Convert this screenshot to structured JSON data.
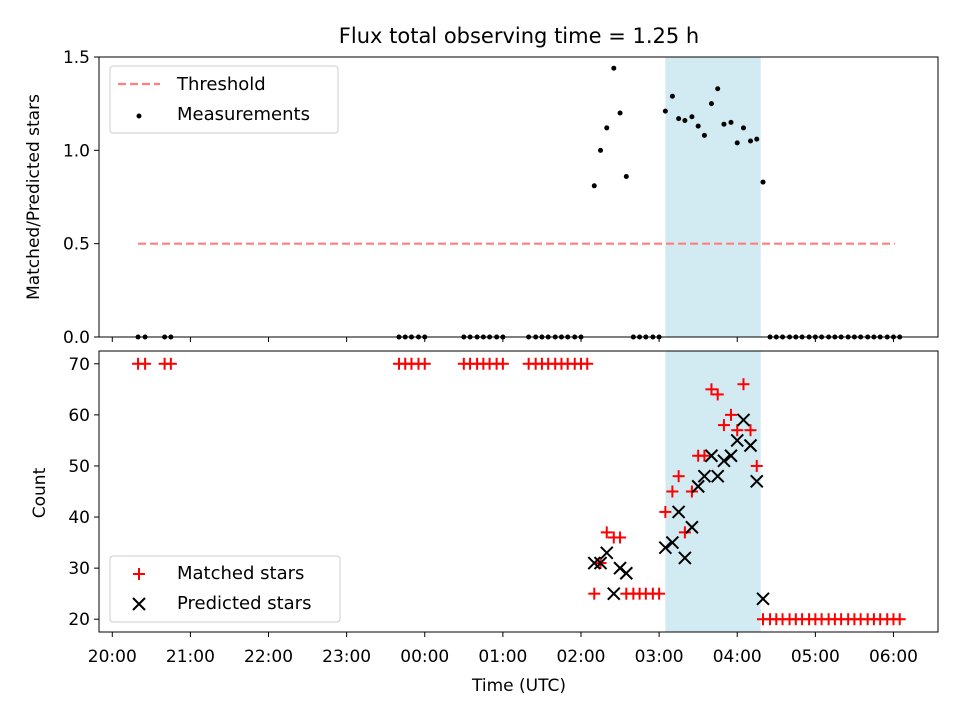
{
  "colors": {
    "threshold": "#ff7f7f",
    "measurement": "#000000",
    "matched": "#ff0000",
    "predicted": "#000000",
    "span": "#add8e6"
  },
  "chart_data": [
    {
      "type": "scatter",
      "title": "Flux total observing time = 1.25 h",
      "xlabel": "",
      "ylabel": "Matched/Predicted stars",
      "xlim": [
        -0.17,
        10.57
      ],
      "ylim": [
        0,
        1.5
      ],
      "yticks": [
        0.0,
        0.5,
        1.0,
        1.5
      ],
      "ytick_labels": [
        "0.0",
        "0.5",
        "1.0",
        "1.5"
      ],
      "shaded_span": [
        7.08,
        8.3
      ],
      "legend": {
        "placement": "upper-left",
        "threshold_label": "Threshold",
        "measurements_label": "Measurements"
      },
      "threshold": {
        "name": "Threshold",
        "y": 0.5,
        "x": [
          0.33,
          10.02
        ]
      },
      "series": [
        {
          "name": "Measurements",
          "points": [
            [
              0.33,
              0
            ],
            [
              0.42,
              0
            ],
            [
              0.67,
              0
            ],
            [
              0.75,
              0
            ],
            [
              3.67,
              0
            ],
            [
              3.75,
              0
            ],
            [
              3.83,
              0
            ],
            [
              3.92,
              0
            ],
            [
              4.0,
              0
            ],
            [
              4.5,
              0
            ],
            [
              4.58,
              0
            ],
            [
              4.67,
              0
            ],
            [
              4.75,
              0
            ],
            [
              4.83,
              0
            ],
            [
              4.92,
              0
            ],
            [
              5.0,
              0
            ],
            [
              5.33,
              0
            ],
            [
              5.42,
              0
            ],
            [
              5.5,
              0
            ],
            [
              5.58,
              0
            ],
            [
              5.67,
              0
            ],
            [
              5.75,
              0
            ],
            [
              5.83,
              0
            ],
            [
              5.92,
              0
            ],
            [
              6.0,
              0
            ],
            [
              6.17,
              0.81
            ],
            [
              6.25,
              1.0
            ],
            [
              6.33,
              1.12
            ],
            [
              6.42,
              1.44
            ],
            [
              6.5,
              1.2
            ],
            [
              6.58,
              0.86
            ],
            [
              6.67,
              0
            ],
            [
              6.75,
              0
            ],
            [
              6.83,
              0
            ],
            [
              6.92,
              0
            ],
            [
              7.0,
              0
            ],
            [
              7.08,
              1.21
            ],
            [
              7.17,
              1.29
            ],
            [
              7.25,
              1.17
            ],
            [
              7.33,
              1.16
            ],
            [
              7.42,
              1.18
            ],
            [
              7.5,
              1.13
            ],
            [
              7.58,
              1.08
            ],
            [
              7.67,
              1.25
            ],
            [
              7.75,
              1.33
            ],
            [
              7.83,
              1.14
            ],
            [
              7.92,
              1.15
            ],
            [
              8.0,
              1.04
            ],
            [
              8.08,
              1.12
            ],
            [
              8.17,
              1.05
            ],
            [
              8.25,
              1.06
            ],
            [
              8.33,
              0.83
            ],
            [
              8.42,
              0
            ],
            [
              8.5,
              0
            ],
            [
              8.58,
              0
            ],
            [
              8.67,
              0
            ],
            [
              8.75,
              0
            ],
            [
              8.83,
              0
            ],
            [
              8.92,
              0
            ],
            [
              9.0,
              0
            ],
            [
              9.08,
              0
            ],
            [
              9.17,
              0
            ],
            [
              9.25,
              0
            ],
            [
              9.33,
              0
            ],
            [
              9.42,
              0
            ],
            [
              9.5,
              0
            ],
            [
              9.58,
              0
            ],
            [
              9.67,
              0
            ],
            [
              9.75,
              0
            ],
            [
              9.83,
              0
            ],
            [
              9.92,
              0
            ],
            [
              10.0,
              0
            ],
            [
              10.08,
              0
            ]
          ]
        }
      ]
    },
    {
      "type": "scatter",
      "title": "",
      "xlabel": "Time (UTC)",
      "ylabel": "Count",
      "xlim": [
        -0.17,
        10.57
      ],
      "ylim": [
        17.5,
        72.5
      ],
      "yticks": [
        20,
        30,
        40,
        50,
        60,
        70
      ],
      "ytick_labels": [
        "20",
        "30",
        "40",
        "50",
        "60",
        "70"
      ],
      "xticks": [
        0,
        1,
        2,
        3,
        4,
        5,
        6,
        7,
        8,
        9,
        10
      ],
      "xtick_labels": [
        "20:00",
        "21:00",
        "22:00",
        "23:00",
        "00:00",
        "01:00",
        "02:00",
        "03:00",
        "04:00",
        "05:00",
        "06:00"
      ],
      "shaded_span": [
        7.08,
        8.3
      ],
      "legend": {
        "placement": "lower-left",
        "matched_label": "Matched stars",
        "predicted_label": "Predicted stars"
      },
      "series": [
        {
          "name": "Matched stars",
          "marker": "plus",
          "points": [
            [
              0.33,
              70
            ],
            [
              0.42,
              70
            ],
            [
              0.67,
              70
            ],
            [
              0.75,
              70
            ],
            [
              3.67,
              70
            ],
            [
              3.75,
              70
            ],
            [
              3.83,
              70
            ],
            [
              3.92,
              70
            ],
            [
              4.0,
              70
            ],
            [
              4.5,
              70
            ],
            [
              4.58,
              70
            ],
            [
              4.67,
              70
            ],
            [
              4.75,
              70
            ],
            [
              4.83,
              70
            ],
            [
              4.92,
              70
            ],
            [
              5.0,
              70
            ],
            [
              5.33,
              70
            ],
            [
              5.42,
              70
            ],
            [
              5.5,
              70
            ],
            [
              5.58,
              70
            ],
            [
              5.67,
              70
            ],
            [
              5.75,
              70
            ],
            [
              5.83,
              70
            ],
            [
              5.92,
              70
            ],
            [
              6.0,
              70
            ],
            [
              6.08,
              70
            ],
            [
              6.17,
              25
            ],
            [
              6.25,
              31
            ],
            [
              6.33,
              37
            ],
            [
              6.42,
              36
            ],
            [
              6.5,
              36
            ],
            [
              6.58,
              25
            ],
            [
              6.67,
              25
            ],
            [
              6.75,
              25
            ],
            [
              6.83,
              25
            ],
            [
              6.92,
              25
            ],
            [
              7.0,
              25
            ],
            [
              7.08,
              41
            ],
            [
              7.17,
              45
            ],
            [
              7.25,
              48
            ],
            [
              7.33,
              37
            ],
            [
              7.42,
              45
            ],
            [
              7.5,
              52
            ],
            [
              7.58,
              52
            ],
            [
              7.67,
              65
            ],
            [
              7.75,
              64
            ],
            [
              7.83,
              58
            ],
            [
              7.92,
              60
            ],
            [
              8.0,
              57
            ],
            [
              8.08,
              66
            ],
            [
              8.17,
              57
            ],
            [
              8.25,
              50
            ],
            [
              8.33,
              20
            ],
            [
              8.42,
              20
            ],
            [
              8.5,
              20
            ],
            [
              8.58,
              20
            ],
            [
              8.67,
              20
            ],
            [
              8.75,
              20
            ],
            [
              8.83,
              20
            ],
            [
              8.92,
              20
            ],
            [
              9.0,
              20
            ],
            [
              9.08,
              20
            ],
            [
              9.17,
              20
            ],
            [
              9.25,
              20
            ],
            [
              9.33,
              20
            ],
            [
              9.42,
              20
            ],
            [
              9.5,
              20
            ],
            [
              9.58,
              20
            ],
            [
              9.67,
              20
            ],
            [
              9.75,
              20
            ],
            [
              9.83,
              20
            ],
            [
              9.92,
              20
            ],
            [
              10.0,
              20
            ],
            [
              10.08,
              20
            ]
          ]
        },
        {
          "name": "Predicted stars",
          "marker": "x",
          "points": [
            [
              6.17,
              31
            ],
            [
              6.25,
              31
            ],
            [
              6.33,
              33
            ],
            [
              6.42,
              25
            ],
            [
              6.5,
              30
            ],
            [
              6.58,
              29
            ],
            [
              7.08,
              34
            ],
            [
              7.17,
              35
            ],
            [
              7.25,
              41
            ],
            [
              7.33,
              32
            ],
            [
              7.42,
              38
            ],
            [
              7.5,
              46
            ],
            [
              7.58,
              48
            ],
            [
              7.67,
              52
            ],
            [
              7.75,
              48
            ],
            [
              7.83,
              51
            ],
            [
              7.92,
              52
            ],
            [
              8.0,
              55
            ],
            [
              8.08,
              59
            ],
            [
              8.17,
              54
            ],
            [
              8.25,
              47
            ],
            [
              8.33,
              24
            ]
          ]
        }
      ]
    }
  ]
}
